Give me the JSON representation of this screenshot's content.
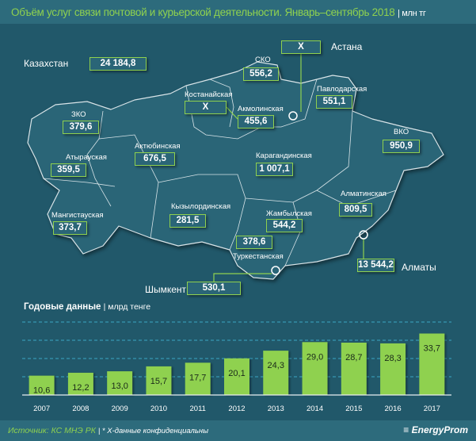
{
  "header": {
    "title": "Объём услуг связи почтовой и курьерской деятельности. Январь–сентябрь 2018",
    "unit": "| млн тг"
  },
  "map": {
    "total": {
      "label": "Казахстан",
      "value": "24 184,8"
    },
    "regions": [
      {
        "name": "Астана",
        "value": "X"
      },
      {
        "name": "СКО",
        "value": "556,2"
      },
      {
        "name": "Павлодарская",
        "value": "551,1"
      },
      {
        "name": "Костанайская",
        "value": "X"
      },
      {
        "name": "Акмолинская",
        "value": "455,6"
      },
      {
        "name": "ЗКО",
        "value": "379,6"
      },
      {
        "name": "ВКО",
        "value": "950,9"
      },
      {
        "name": "Актюбинская",
        "value": "676,5"
      },
      {
        "name": "Карагандинская",
        "value": "1 007,1"
      },
      {
        "name": "Атырауская",
        "value": "359,5"
      },
      {
        "name": "Алматинская",
        "value": "809,5"
      },
      {
        "name": "Кызылординская",
        "value": "281,5"
      },
      {
        "name": "Жамбылская",
        "value": "544,2"
      },
      {
        "name": "Мангистауская",
        "value": "373,7"
      },
      {
        "name": "Туркестанская",
        "value": "378,6"
      },
      {
        "name": "Алматы",
        "value": "13 544,2"
      },
      {
        "name": "Шымкент",
        "value": "530,1"
      }
    ]
  },
  "chart_data": {
    "type": "bar",
    "title": "Годовые данные",
    "unit": "| млрд тенге",
    "categories": [
      "2007",
      "2008",
      "2009",
      "2010",
      "2011",
      "2012",
      "2013",
      "2014",
      "2015",
      "2016",
      "2017"
    ],
    "values": [
      10.6,
      12.2,
      13.0,
      15.7,
      17.7,
      20.1,
      24.3,
      29.0,
      28.7,
      28.3,
      33.7
    ],
    "labels": [
      "10,6",
      "12,2",
      "13,0",
      "15,7",
      "17,7",
      "20,1",
      "24,3",
      "29,0",
      "28,7",
      "28,3",
      "33,7"
    ],
    "ylim": [
      0,
      40
    ],
    "grid": true,
    "bar_color": "#8fd14f"
  },
  "footer": {
    "source": "Источник: КС МНЭ РК",
    "note": "| * Х-данные конфиденциальны",
    "logo": "EnergyProm"
  }
}
